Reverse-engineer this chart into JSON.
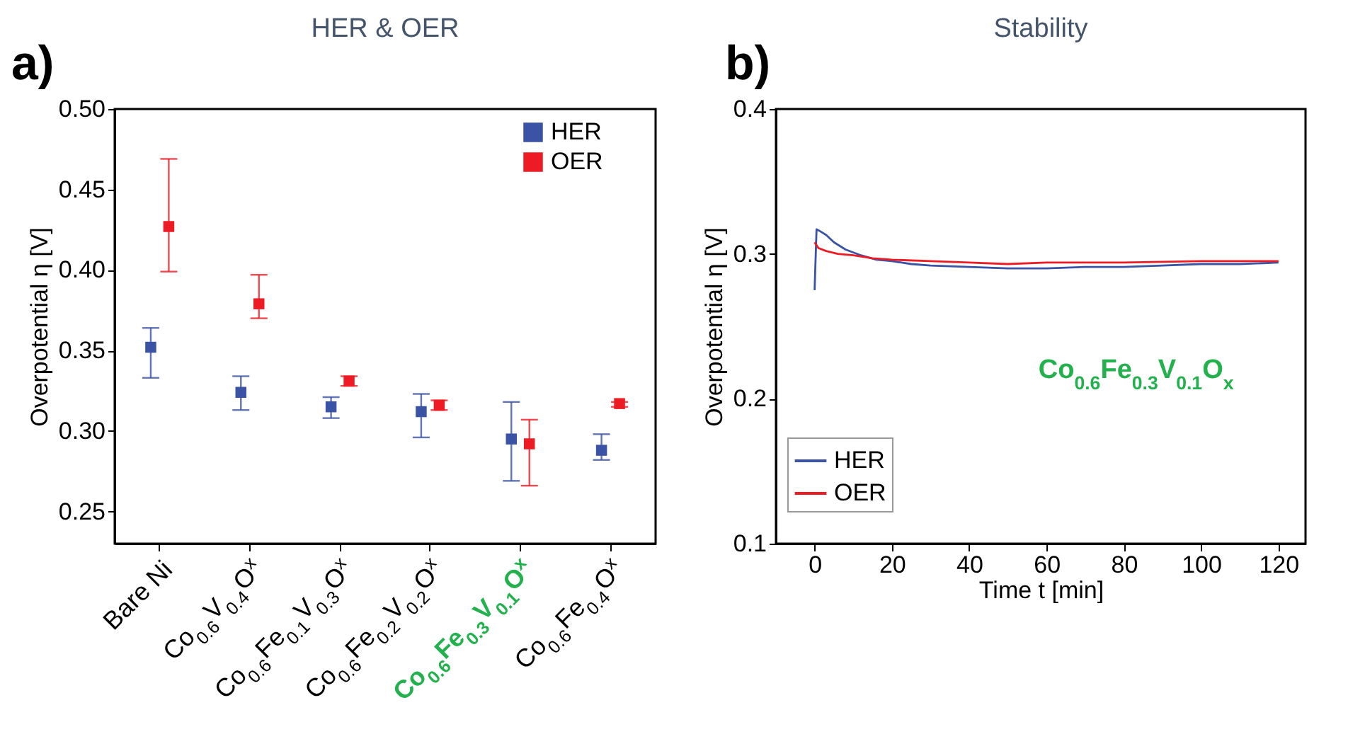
{
  "chart_data": [
    {
      "type": "scatter",
      "title": "HER & OER",
      "ylabel": "Overpotential η [V]",
      "categories": [
        "Bare Ni",
        "Co$_{0.6}$V$_{0.4}$O$^{x}$",
        "Co$_{0.6}$Fe$_{0.1}$V$_{0.3}$O$^{x}$",
        "Co$_{0.6}$Fe$_{0.2}$V$_{0.2}$O$^{x}$",
        "Co$_{0.6}$Fe$_{0.3}$V$_{0.1}$O$^{x}$",
        "Co$_{0.6}$Fe$_{0.4}$O$^{x}$"
      ],
      "series": [
        {
          "name": "HER",
          "color": "#3a53a4",
          "values": [
            0.352,
            0.324,
            0.315,
            0.312,
            0.295,
            0.288
          ],
          "errors": [
            [
              0.333,
              0.364
            ],
            [
              0.313,
              0.334
            ],
            [
              0.308,
              0.321
            ],
            [
              0.296,
              0.323
            ],
            [
              0.269,
              0.318
            ],
            [
              0.282,
              0.298
            ]
          ]
        },
        {
          "name": "OER",
          "color": "#ed1c24",
          "values": [
            0.427,
            0.379,
            0.331,
            0.316,
            0.292,
            0.317
          ],
          "errors": [
            [
              0.399,
              0.469
            ],
            [
              0.37,
              0.397
            ],
            [
              0.328,
              0.334
            ],
            [
              0.313,
              0.319
            ],
            [
              0.266,
              0.307
            ],
            [
              0.315,
              0.318
            ]
          ]
        }
      ],
      "ylim": [
        0.23,
        0.5
      ],
      "yticks": [
        {
          "value": 0.25,
          "label": "0.25"
        },
        {
          "value": 0.3,
          "label": "0.30"
        },
        {
          "value": 0.35,
          "label": "0.35"
        },
        {
          "value": 0.4,
          "label": "0.40"
        },
        {
          "value": 0.45,
          "label": "0.45"
        },
        {
          "value": 0.5,
          "label": "0.50"
        }
      ],
      "marker": "square",
      "legend": "top right",
      "grid": false,
      "annotations": [
        "a)"
      ]
    },
    {
      "type": "line",
      "title": "Stability",
      "xlabel": "Time t [min]",
      "ylabel": "Overpotential η [V]",
      "series": [
        {
          "name": "HER",
          "color": "#3a53a4",
          "x": [
            0,
            0.5,
            1.2,
            3,
            5,
            8,
            12,
            16,
            20,
            25,
            30,
            40,
            50,
            60,
            70,
            80,
            90,
            100,
            110,
            120
          ],
          "values": [
            0.275,
            0.317,
            0.316,
            0.313,
            0.308,
            0.303,
            0.299,
            0.296,
            0.295,
            0.293,
            0.292,
            0.291,
            0.29,
            0.29,
            0.291,
            0.291,
            0.292,
            0.293,
            0.293,
            0.294
          ]
        },
        {
          "name": "OER",
          "color": "#ed1c24",
          "x": [
            0,
            1,
            3,
            6,
            10,
            15,
            20,
            30,
            40,
            50,
            60,
            80,
            100,
            120
          ],
          "values": [
            0.308,
            0.304,
            0.302,
            0.3,
            0.299,
            0.297,
            0.296,
            0.295,
            0.294,
            0.293,
            0.294,
            0.294,
            0.295,
            0.295
          ]
        }
      ],
      "xlim": [
        -10,
        127
      ],
      "xticks": [
        0,
        20,
        40,
        60,
        80,
        100,
        120
      ],
      "ylim": [
        0.1,
        0.4
      ],
      "yticks": [
        0.1,
        0.2,
        0.3,
        0.4
      ],
      "line_style": "solid",
      "legend": "bottom left",
      "grid": false,
      "annotations": [
        "b)",
        "Co$_{0.6}$Fe$_{0.3}$V$_{0.1}$O$_{x}$"
      ]
    }
  ]
}
